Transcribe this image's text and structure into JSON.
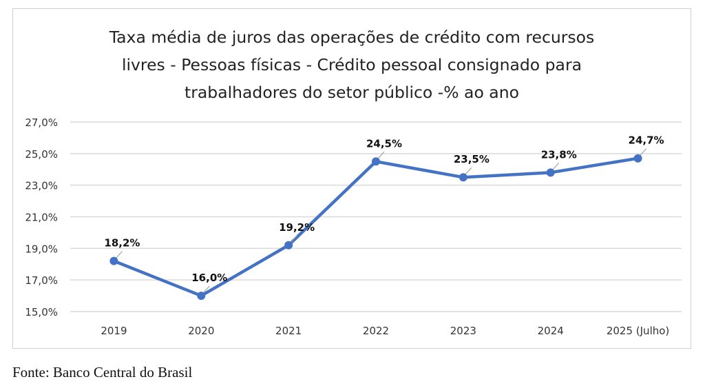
{
  "chart_data": {
    "type": "line",
    "title_lines": [
      "Taxa média de juros das operações de crédito com recursos",
      "livres - Pessoas físicas - Crédito pessoal consignado para",
      "trabalhadores do setor público  -% ao ano"
    ],
    "categories": [
      "2019",
      "2020",
      "2021",
      "2022",
      "2023",
      "2024",
      "2025 (Julho)"
    ],
    "values": [
      18.2,
      16.0,
      19.2,
      24.5,
      23.5,
      23.8,
      24.7
    ],
    "data_labels": [
      "18,2%",
      "16,0%",
      "19,2%",
      "24,5%",
      "23,5%",
      "23,8%",
      "24,7%"
    ],
    "ylim": [
      15,
      27
    ],
    "yticks": [
      15,
      17,
      19,
      21,
      23,
      25,
      27
    ],
    "ytick_labels": [
      "15,0%",
      "17,0%",
      "19,0%",
      "21,0%",
      "23,0%",
      "25,0%",
      "27,0%"
    ],
    "grid": true,
    "legend": "none",
    "line_color": "#4472c4"
  },
  "source": "Fonte: Banco Central do Brasil"
}
